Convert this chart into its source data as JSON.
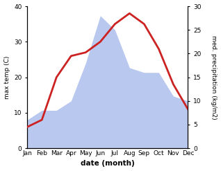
{
  "months": [
    "Jan",
    "Feb",
    "Mar",
    "Apr",
    "May",
    "Jun",
    "Jul",
    "Aug",
    "Sep",
    "Oct",
    "Nov",
    "Dec"
  ],
  "x": [
    0,
    1,
    2,
    3,
    4,
    5,
    6,
    7,
    8,
    9,
    10,
    11
  ],
  "temp": [
    6,
    8,
    20,
    26,
    27,
    30,
    35,
    38,
    35,
    28,
    18,
    11
  ],
  "precip": [
    6,
    8,
    8,
    10,
    18,
    28,
    25,
    17,
    16,
    16,
    11,
    10
  ],
  "temp_color": "#cc2222",
  "precip_fill_color": "#b8c8ee",
  "temp_ylim": [
    0,
    40
  ],
  "precip_ylim": [
    0,
    30
  ],
  "temp_yticks": [
    0,
    10,
    20,
    30,
    40
  ],
  "precip_yticks": [
    0,
    5,
    10,
    15,
    20,
    25,
    30
  ],
  "xlabel": "date (month)",
  "ylabel_left": "max temp (C)",
  "ylabel_right": "med. precipitation (kg/m2)",
  "temp_linewidth": 2.0,
  "bg_color": "#ffffff"
}
